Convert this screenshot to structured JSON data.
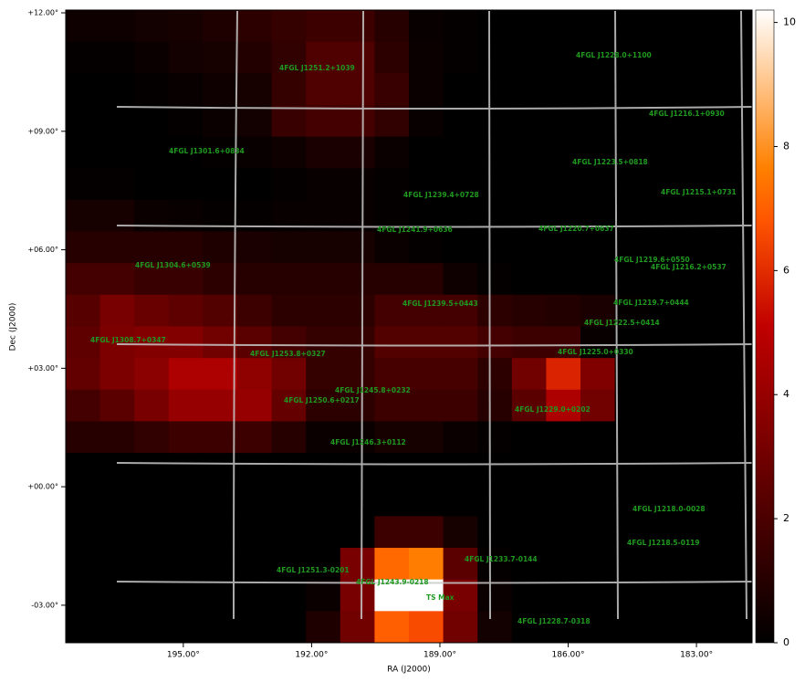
{
  "chart_data": {
    "type": "heatmap",
    "xlabel": "RA (J2000)",
    "ylabel": "Dec (J2000)",
    "xlim": [
      197.75,
      181.7
    ],
    "ylim": [
      -3.95,
      12.07
    ],
    "xticks": [
      {
        "value": 195,
        "label": "195.00°"
      },
      {
        "value": 192,
        "label": "192.00°"
      },
      {
        "value": 189,
        "label": "189.00°"
      },
      {
        "value": 186,
        "label": "186.00°"
      },
      {
        "value": 183,
        "label": "183.00°"
      }
    ],
    "yticks": [
      {
        "value": 12,
        "label": "+12.00°"
      },
      {
        "value": 9,
        "label": "+09.00°"
      },
      {
        "value": 6,
        "label": "+06.00°"
      },
      {
        "value": 3,
        "label": "+03.00°"
      },
      {
        "value": 0,
        "label": "+00.00°"
      },
      {
        "value": -3,
        "label": "-03.00°"
      }
    ],
    "colormap": "gist_heat",
    "zlim": [
      0,
      10.2
    ],
    "zticks": [
      0,
      2,
      4,
      6,
      8,
      10
    ],
    "z": [
      [
        0.4,
        0.4,
        0.5,
        0.6,
        0.8,
        1.2,
        1.4,
        1.6,
        1.6,
        1.0,
        0.2,
        0.1,
        0,
        0,
        0,
        0,
        0,
        0,
        0,
        0
      ],
      [
        0.1,
        0.1,
        0.3,
        0.5,
        0.6,
        0.9,
        1.3,
        2.1,
        2.1,
        1.2,
        0.3,
        0.1,
        0,
        0,
        0,
        0,
        0,
        0,
        0,
        0
      ],
      [
        0,
        0,
        0.1,
        0.2,
        0.4,
        0.6,
        1.4,
        2.1,
        2.1,
        1.5,
        0.3,
        0,
        0,
        0,
        0,
        0,
        0,
        0,
        0,
        0
      ],
      [
        0,
        0,
        0,
        0.1,
        0.3,
        0.5,
        1.5,
        1.8,
        1.8,
        1.3,
        0.2,
        0,
        0,
        0,
        0,
        0,
        0,
        0,
        0,
        0
      ],
      [
        0,
        0,
        0,
        0,
        0.1,
        0.2,
        0.4,
        0.7,
        0.7,
        0.3,
        0,
        0,
        0,
        0,
        0,
        0,
        0,
        0,
        0,
        0
      ],
      [
        0.1,
        0.1,
        0,
        0,
        0,
        0,
        0.1,
        0.2,
        0.2,
        0.1,
        0,
        0,
        0,
        0,
        0,
        0,
        0,
        0,
        0,
        0
      ],
      [
        0.6,
        0.6,
        0.3,
        0.2,
        0.1,
        0.1,
        0.2,
        0.2,
        0.2,
        0.1,
        0,
        0,
        0,
        0,
        0,
        0,
        0,
        0,
        0,
        0
      ],
      [
        1.0,
        1.0,
        1.0,
        1.0,
        0.8,
        0.7,
        0.6,
        0.6,
        0.6,
        0.3,
        0.1,
        0,
        0,
        0,
        0,
        0,
        0,
        0,
        0,
        0
      ],
      [
        1.8,
        1.8,
        1.5,
        1.5,
        1.2,
        1.0,
        1.0,
        1.0,
        1.0,
        1.0,
        1.0,
        0.4,
        0.1,
        0,
        0,
        0,
        0,
        0,
        0,
        0
      ],
      [
        2.3,
        3.2,
        2.8,
        2.5,
        2.2,
        1.6,
        1.2,
        1.2,
        1.2,
        1.8,
        1.8,
        1.8,
        1.2,
        1.0,
        0.9,
        0.7,
        0.1,
        0,
        0,
        0
      ],
      [
        2.5,
        3.3,
        3.5,
        3.5,
        3.0,
        2.4,
        1.8,
        1.4,
        1.4,
        2.2,
        2.2,
        2.2,
        1.8,
        1.6,
        1.6,
        0.2,
        0,
        0,
        0,
        0
      ],
      [
        2.6,
        3.3,
        3.7,
        4.6,
        4.6,
        3.8,
        3.0,
        1.4,
        1.4,
        1.9,
        1.9,
        1.9,
        1.2,
        3.0,
        5.8,
        3.4,
        0,
        0,
        0,
        0
      ],
      [
        1.8,
        2.4,
        3.2,
        4.0,
        4.0,
        4.0,
        2.7,
        1.2,
        1.2,
        1.6,
        1.6,
        1.6,
        1.0,
        2.4,
        4.6,
        3.0,
        0,
        0,
        0,
        0
      ],
      [
        1.0,
        1.0,
        1.3,
        1.6,
        1.6,
        1.6,
        1.0,
        0.3,
        0.3,
        0.6,
        0.6,
        0.3,
        0.1,
        0,
        0,
        0,
        0,
        0,
        0,
        0
      ],
      [
        0,
        0,
        0,
        0,
        0,
        0,
        0,
        0,
        0,
        0,
        0,
        0,
        0,
        0,
        0,
        0,
        0,
        0,
        0,
        0
      ],
      [
        0,
        0,
        0,
        0,
        0,
        0,
        0,
        0,
        0,
        0,
        0,
        0,
        0,
        0,
        0,
        0,
        0,
        0,
        0,
        0
      ],
      [
        0,
        0,
        0,
        0,
        0,
        0,
        0,
        0,
        0,
        1.6,
        1.6,
        0.6,
        0,
        0,
        0,
        0,
        0,
        0,
        0,
        0
      ],
      [
        0,
        0,
        0,
        0,
        0,
        0,
        0,
        0,
        3.2,
        7.2,
        7.6,
        2.4,
        0.1,
        0,
        0,
        0,
        0,
        0,
        0,
        0
      ],
      [
        0,
        0,
        0,
        0,
        0,
        0,
        0,
        0.3,
        3.2,
        10.2,
        10.2,
        3.2,
        0.3,
        0,
        0,
        0,
        0,
        0,
        0,
        0
      ],
      [
        0,
        0,
        0,
        0,
        0,
        0,
        0,
        0.8,
        3.0,
        7.0,
        6.6,
        3.0,
        0.5,
        0,
        0,
        0,
        0,
        0,
        0,
        0
      ]
    ],
    "annotations": [
      "4FGL J1228.0+1100",
      "4FGL J1251.2+1039",
      "4FGL J1216.1+0930",
      "4FGL J1301.6+0834",
      "4FGL J1223.5+0818",
      "4FGL J1215.1+0731",
      "4FGL J1239.4+0728",
      "4FGL J1241.9+0636",
      "4FGL J1220.7+0637",
      "4FGL J1219.6+0550",
      "4FGL J1304.6+0539",
      "4FGL J1216.2+0537",
      "4FGL J1239.5+0443",
      "4FGL J1219.7+0444",
      "4FGL J1222.5+0414",
      "4FGL J1308.7+0347",
      "4FGL J1253.8+0327",
      "4FGL J1225.0+0330",
      "4FGL J1245.8+0232",
      "4FGL J1250.6+0217",
      "4FGL J1229.0+0202",
      "4FGL J1246.3+0112",
      "4FGL J1218.0-0028",
      "4FGL J1218.5-0119",
      "4FGL J1233.7-0144",
      "4FGL J1251.3-0201",
      "4FGL J1243.9-0218",
      "TS Max",
      "4FGL J1228.7-0318"
    ]
  }
}
